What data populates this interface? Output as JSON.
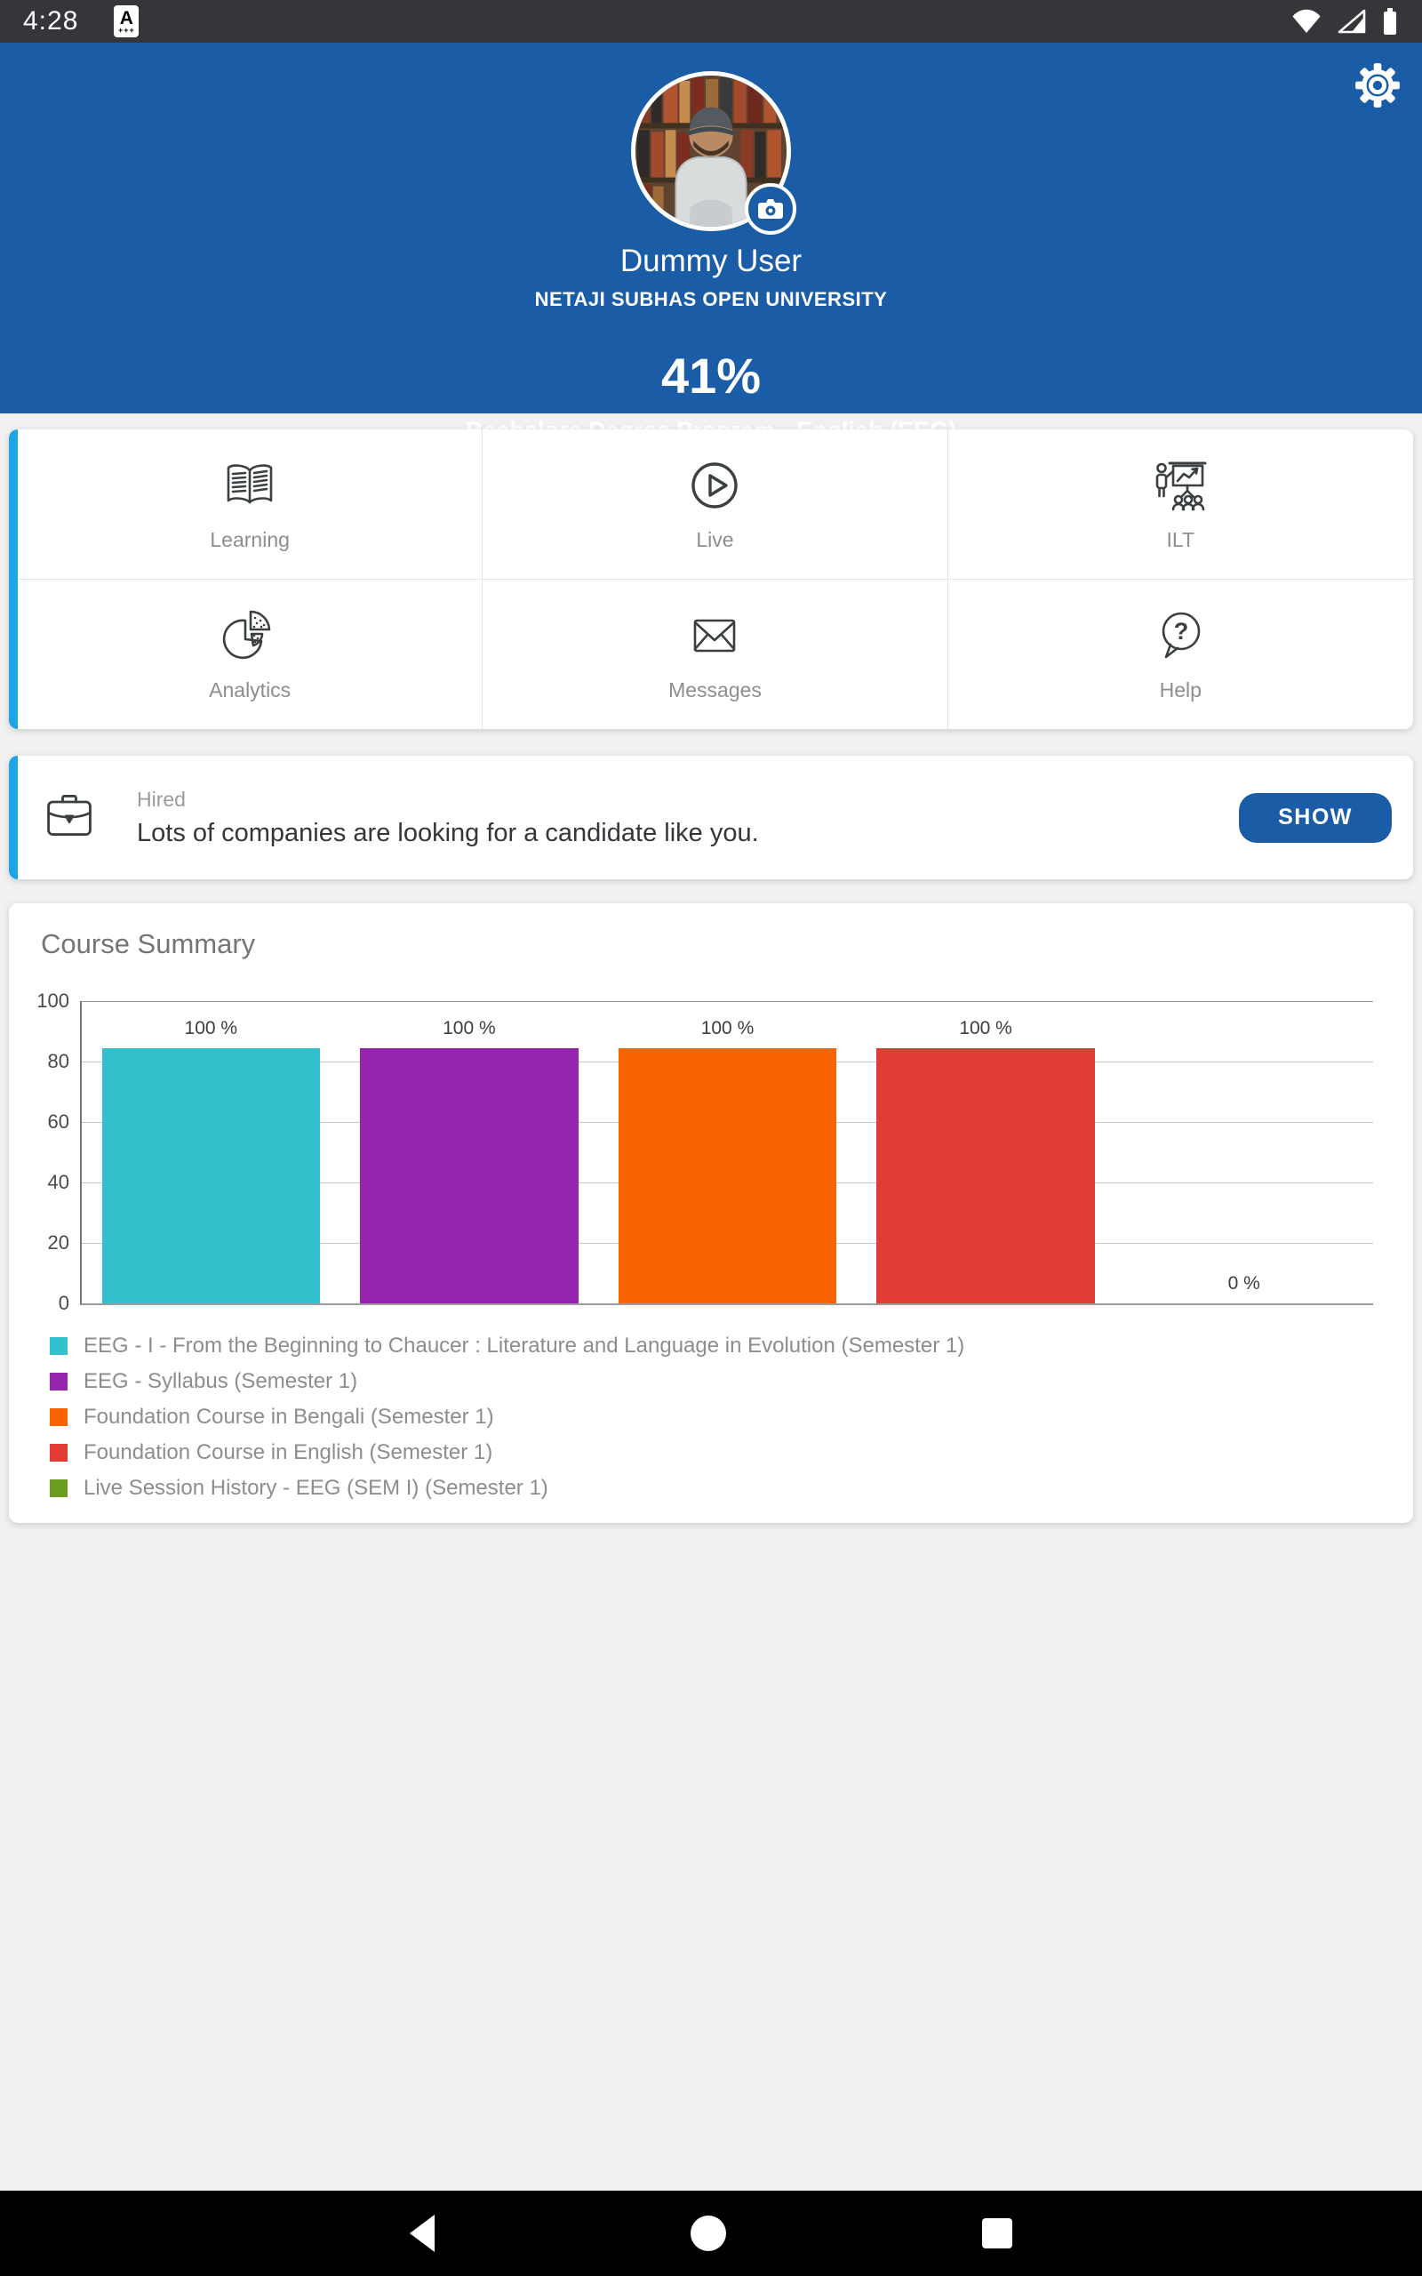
{
  "status_bar": {
    "time": "4:28",
    "app_badge": "A",
    "icons": [
      "wifi-icon",
      "cellular-icon",
      "battery-icon"
    ]
  },
  "header": {
    "background_color": "#1B5CA7",
    "user_name": "Dummy User",
    "institution": "NETAJI SUBHAS OPEN UNIVERSITY",
    "progress_percent": "41%",
    "program": "Bachelors Degree Program - English (EEG)"
  },
  "menu": {
    "accent_color": "#1FA3E3",
    "items": [
      {
        "label": "Learning",
        "icon": "open-book-icon"
      },
      {
        "label": "Live",
        "icon": "play-circle-icon"
      },
      {
        "label": "ILT",
        "icon": "presentation-icon"
      },
      {
        "label": "Analytics",
        "icon": "pie-chart-icon"
      },
      {
        "label": "Messages",
        "icon": "envelope-icon"
      },
      {
        "label": "Help",
        "icon": "question-bubble-icon"
      }
    ]
  },
  "hired_banner": {
    "title": "Hired",
    "message": "Lots of companies are looking for a candidate like you.",
    "button_label": "SHOW",
    "icon": "briefcase-icon"
  },
  "course_summary": {
    "title": "Course Summary"
  },
  "chart_data": {
    "type": "bar",
    "title": "Course Summary",
    "categories": [
      "EEG - I - From the Beginning to Chaucer : Literature and Language in Evolution (Semester 1)",
      "EEG - Syllabus (Semester 1)",
      "Foundation Course in Bengali (Semester 1)",
      "Foundation Course in English  (Semester 1)",
      "Live Session History - EEG (SEM I) (Semester 1)"
    ],
    "values": [
      100,
      100,
      100,
      100,
      0
    ],
    "bar_labels": [
      "100 %",
      "100 %",
      "100 %",
      "100 %",
      "0 %"
    ],
    "rendered_bar_heights_pct": [
      84.5,
      84.5,
      84.5,
      84.5,
      0
    ],
    "colors": [
      "#35C0CE",
      "#9324AB",
      "#FA6302",
      "#E23B34",
      "#6B9B1F"
    ],
    "ylim": [
      0,
      100
    ],
    "yticks": [
      0,
      20,
      40,
      60,
      80,
      100
    ],
    "grid": true,
    "legend_position": "bottom"
  },
  "nav_bar": {
    "icons": [
      "back-icon",
      "home-icon",
      "recents-icon"
    ]
  }
}
